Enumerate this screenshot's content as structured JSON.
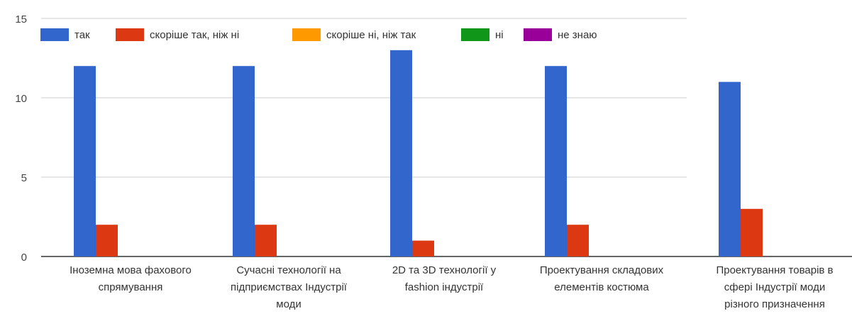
{
  "chart_data": {
    "type": "bar",
    "categories": [
      [
        "Іноземна мова фахового",
        "спрямування"
      ],
      [
        "Сучасні технології на",
        "підприємствах Індустрії",
        "моди"
      ],
      [
        "2D та 3D технології у",
        "fashion індустрії"
      ],
      [
        "Проектування складових",
        "елементів костюма"
      ],
      [
        "Проектування товарів в",
        "сфері Індустрії моди",
        "різного призначення"
      ]
    ],
    "series": [
      {
        "name": "так",
        "color": "#3366cc",
        "values": [
          12,
          12,
          13,
          12,
          11
        ]
      },
      {
        "name": "скоріше так, ніж ні",
        "color": "#dc3912",
        "values": [
          2,
          2,
          1,
          2,
          3
        ]
      },
      {
        "name": "скоріше ні, ніж так",
        "color": "#ff9900",
        "values": [
          0,
          0,
          0,
          0,
          0
        ]
      },
      {
        "name": "ні",
        "color": "#109618",
        "values": [
          0,
          0,
          0,
          0,
          0
        ]
      },
      {
        "name": "не знаю",
        "color": "#990099",
        "values": [
          0,
          0,
          0,
          0,
          0
        ]
      }
    ],
    "yticks": [
      "0",
      "5",
      "10",
      "15"
    ],
    "ylim": [
      0,
      15
    ],
    "grid": true,
    "legend": "top-left"
  }
}
